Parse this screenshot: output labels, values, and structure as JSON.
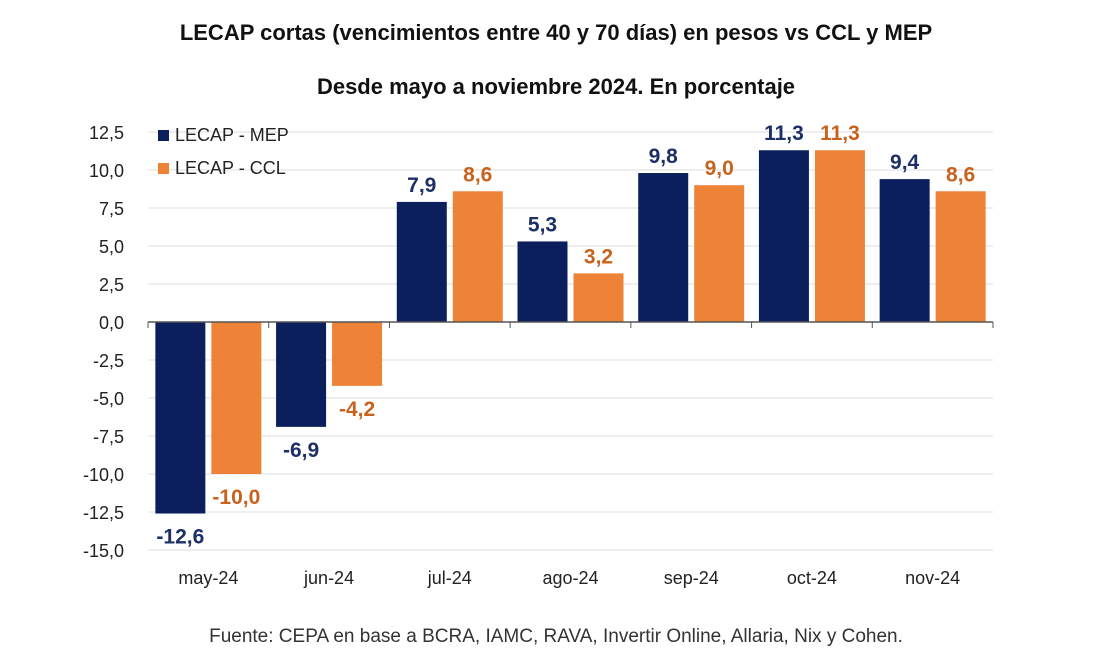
{
  "chart_data": {
    "type": "bar",
    "title": "LECAP cortas (vencimientos entre 40 y 70 días) en pesos vs CCL y MEP",
    "subtitle": "Desde mayo a noviembre 2024. En porcentaje",
    "source": "Fuente: CEPA en base a BCRA, IAMC, RAVA, Invertir Online, Allaria, Nix y Cohen.",
    "categories": [
      "may-24",
      "jun-24",
      "jul-24",
      "ago-24",
      "sep-24",
      "oct-24",
      "nov-24"
    ],
    "series": [
      {
        "name": "LECAP - MEP",
        "color": "#0b1f5c",
        "label_color": "#1c2f66",
        "values": [
          -12.6,
          -6.9,
          7.9,
          5.3,
          9.8,
          11.3,
          9.4
        ],
        "labels": [
          "-12,6",
          "-6,9",
          "7,9",
          "5,3",
          "9,8",
          "11,3",
          "9,4"
        ]
      },
      {
        "name": "LECAP - CCL",
        "color": "#ee8236",
        "label_color": "#c8621c",
        "values": [
          -10.0,
          -4.2,
          8.6,
          3.2,
          9.0,
          11.3,
          8.6
        ],
        "labels": [
          "-10,0",
          "-4,2",
          "8,6",
          "3,2",
          "9,0",
          "11,3",
          "8,6"
        ]
      }
    ],
    "ylim": [
      -15,
      12.5
    ],
    "yticks": [
      12.5,
      10,
      7.5,
      5,
      2.5,
      0,
      -2.5,
      -5,
      -7.5,
      -10,
      -12.5,
      -15
    ],
    "ytick_labels": [
      "12,5",
      "10,0",
      "7,5",
      "5,0",
      "2,5",
      "0,0",
      "-2,5",
      "-5,0",
      "-7,5",
      "-10,0",
      "-12,5",
      "-15,0"
    ],
    "grid": true,
    "legend": "top-left",
    "xlabel": "",
    "ylabel": ""
  }
}
